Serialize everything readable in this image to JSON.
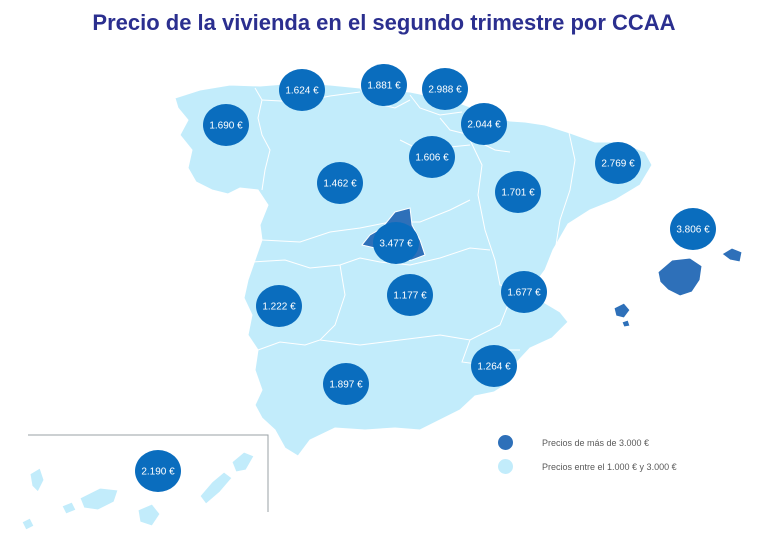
{
  "title": "Precio de la vivienda en el segundo trimestre por CCAA",
  "colors": {
    "light_region": "#c2ecfb",
    "dark_region": "#2e70b9",
    "bubble": "#0a6dbe",
    "bubble_text": "#ffffff",
    "border": "#ffffff",
    "title": "#2b2f8f"
  },
  "bubbles": [
    {
      "region": "Galicia",
      "price": "1.690 €"
    },
    {
      "region": "Asturias",
      "price": "1.624 €"
    },
    {
      "region": "Cantabria",
      "price": "1.881 €"
    },
    {
      "region": "País Vasco",
      "price": "2.988 €"
    },
    {
      "region": "Navarra",
      "price": "2.044 €"
    },
    {
      "region": "La Rioja",
      "price": "1.606 €"
    },
    {
      "region": "Cataluña",
      "price": "2.769 €"
    },
    {
      "region": "Castilla y León",
      "price": "1.462 €"
    },
    {
      "region": "Aragón",
      "price": "1.701 €"
    },
    {
      "region": "Comunidad de Madrid",
      "price": "3.477 €"
    },
    {
      "region": "Islas Baleares",
      "price": "3.806 €"
    },
    {
      "region": "Extremadura",
      "price": "1.222 €"
    },
    {
      "region": "Castilla-La Mancha",
      "price": "1.177 €"
    },
    {
      "region": "Comunidad Valenciana",
      "price": "1.677 €"
    },
    {
      "region": "Región de Murcia",
      "price": "1.264 €"
    },
    {
      "region": "Andalucía",
      "price": "1.897 €"
    },
    {
      "region": "Canarias",
      "price": "2.190 €"
    }
  ],
  "legend": [
    {
      "label": "Precios de más de 3.000 €",
      "color": "#2e70b9"
    },
    {
      "label": "Precios entre el 1.000 € y 3.000 €",
      "color": "#c2ecfb"
    }
  ]
}
